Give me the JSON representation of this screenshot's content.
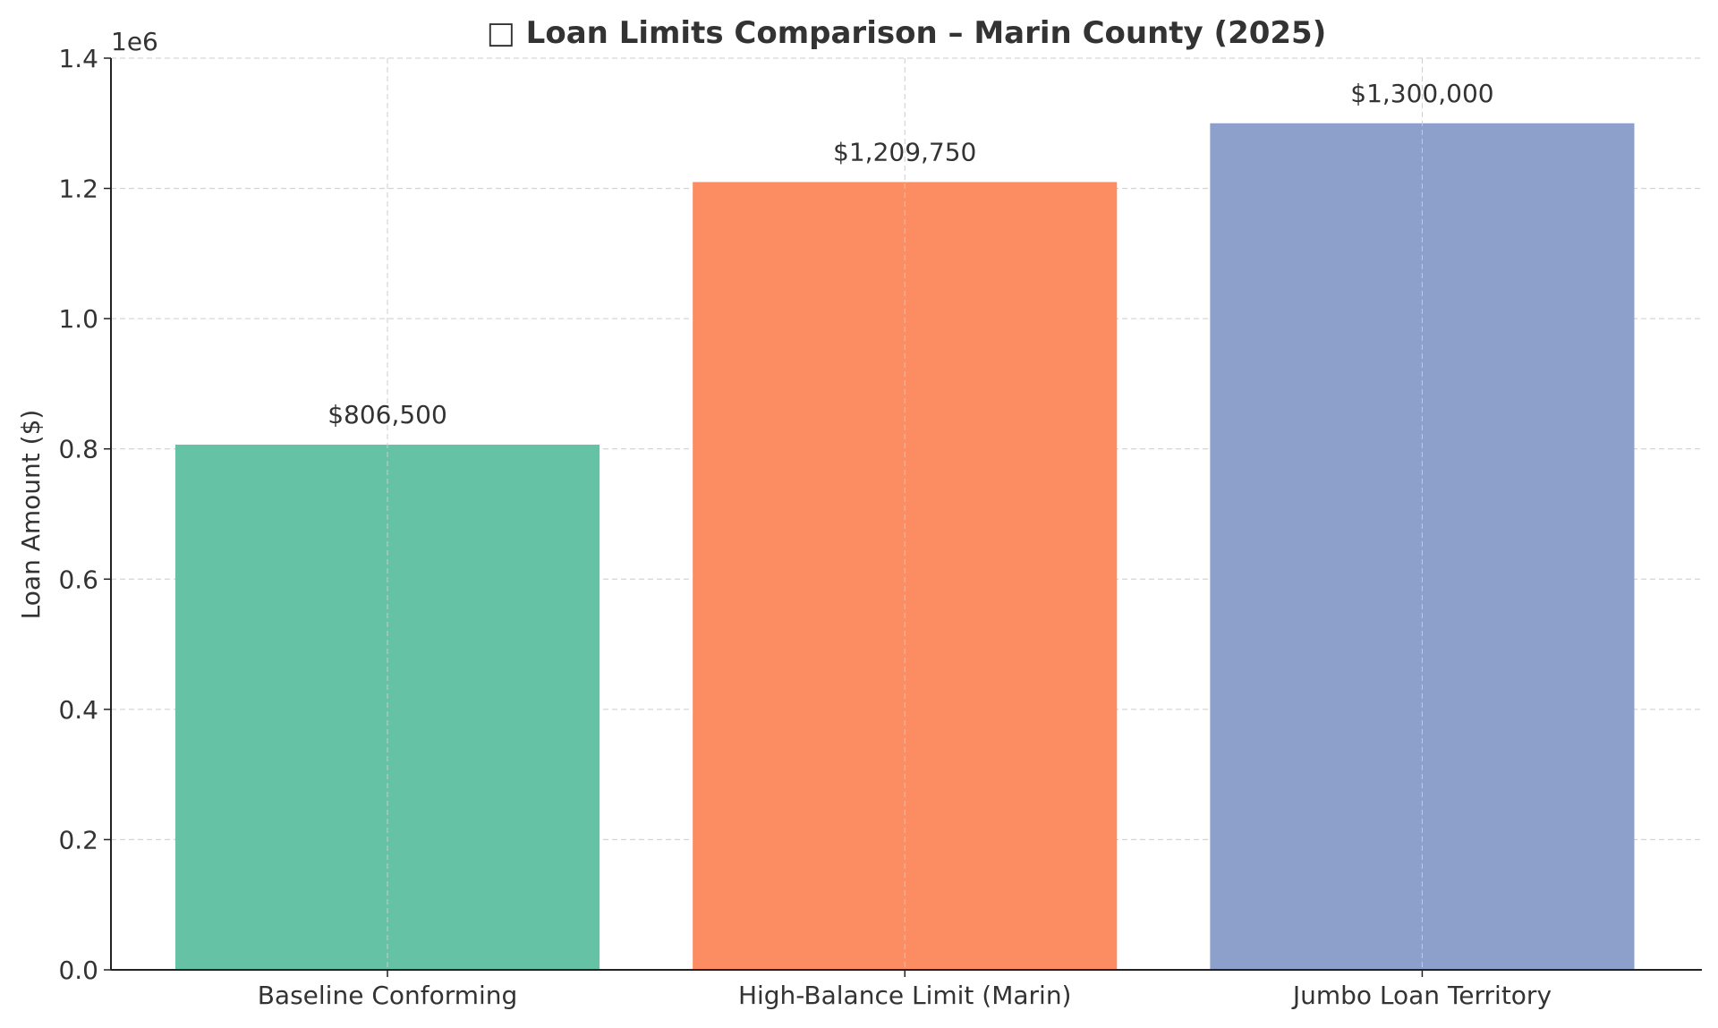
{
  "chart_data": {
    "type": "bar",
    "title": "□ Loan Limits Comparison – Marin County (2025)",
    "xlabel": "",
    "ylabel": "Loan Amount ($)",
    "offset_label": "1e6",
    "categories": [
      "Baseline Conforming",
      "High-Balance Limit (Marin)",
      "Jumbo Loan Territory"
    ],
    "values": [
      806500,
      1209750,
      1300000
    ],
    "data_labels": [
      "$806,500",
      "$1,209,750",
      "$1,300,000"
    ],
    "colors": [
      "#66c2a5",
      "#fc8d62",
      "#8da0cb"
    ],
    "ylim": [
      0,
      1400000
    ],
    "yticks": [
      0,
      200000,
      400000,
      600000,
      800000,
      1000000,
      1200000,
      1400000
    ],
    "ytick_labels": [
      "0.0",
      "0.2",
      "0.4",
      "0.6",
      "0.8",
      "1.0",
      "1.2",
      "1.4"
    ],
    "grid": true
  }
}
